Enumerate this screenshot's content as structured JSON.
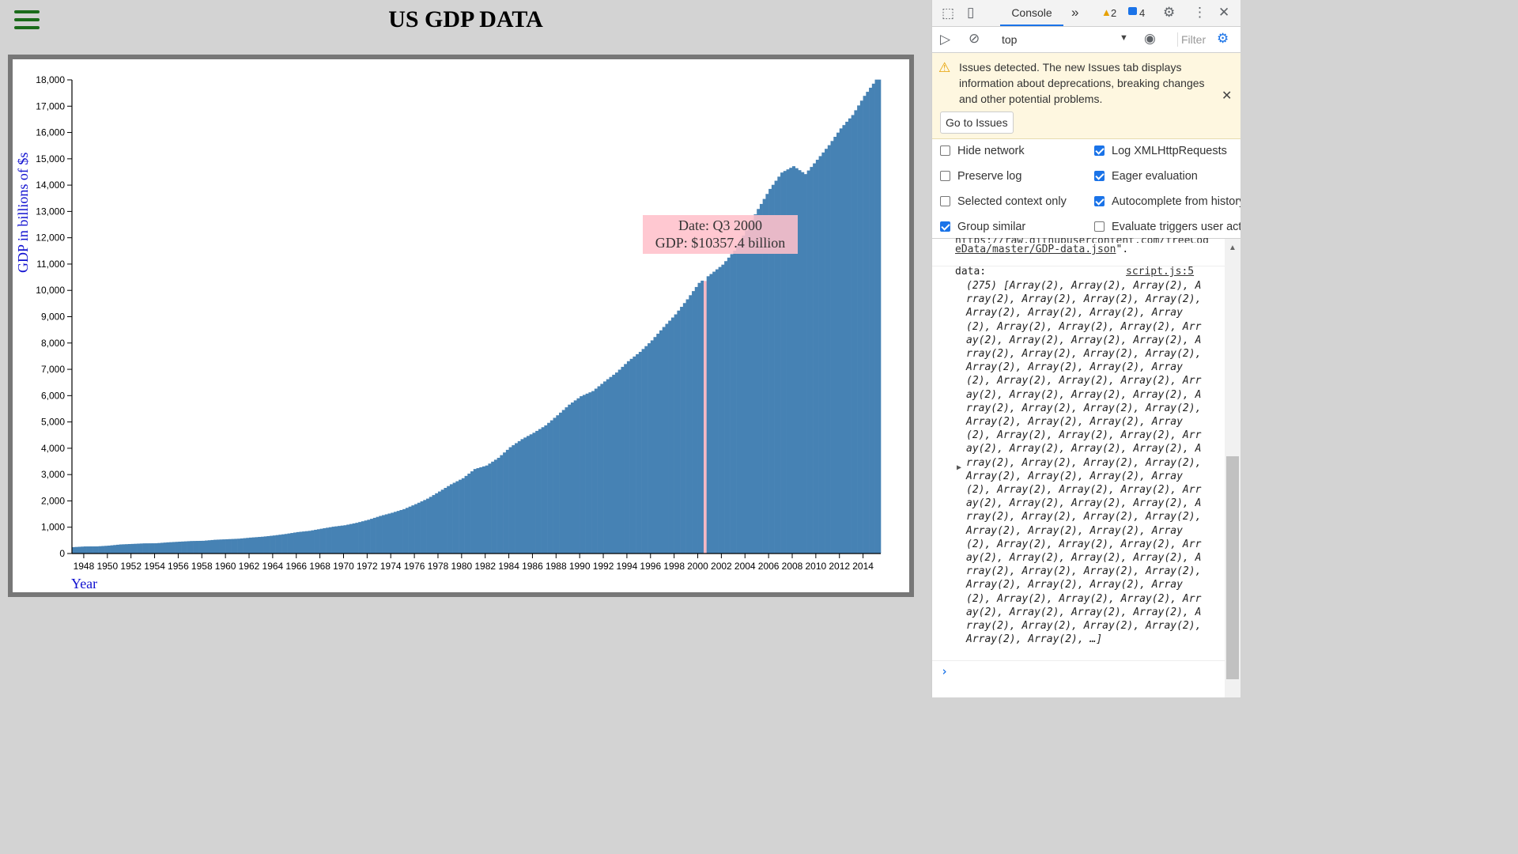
{
  "page": {
    "title": "US GDP DATA",
    "y_axis_title": "GDP in billions of $s",
    "x_axis_title": "Year",
    "tooltip": {
      "date": "Date: Q3 2000",
      "gdp": "GDP: $10357.4 billion"
    },
    "colors": {
      "bar": "#4682b4",
      "highlight_bar": "#f5b8c4",
      "hamburger": "#1a6b1a",
      "axis_titles": "#1010d0"
    }
  },
  "chart_data": {
    "type": "bar",
    "title": "US GDP DATA",
    "xlabel": "Year",
    "ylabel": "GDP in billions of $s",
    "x_range": [
      1947,
      2015.5
    ],
    "ylim": [
      0,
      18000
    ],
    "y_ticks": [
      "0",
      "1,000",
      "2,000",
      "3,000",
      "4,000",
      "5,000",
      "6,000",
      "7,000",
      "8,000",
      "9,000",
      "10,000",
      "11,000",
      "12,000",
      "13,000",
      "14,000",
      "15,000",
      "16,000",
      "17,000",
      "18,000"
    ],
    "x_ticks": [
      "1948",
      "1950",
      "1952",
      "1954",
      "1956",
      "1958",
      "1960",
      "1962",
      "1964",
      "1966",
      "1968",
      "1970",
      "1972",
      "1974",
      "1976",
      "1978",
      "1980",
      "1982",
      "1984",
      "1986",
      "1988",
      "1990",
      "1992",
      "1994",
      "1996",
      "1998",
      "2000",
      "2002",
      "2004",
      "2006",
      "2008",
      "2010",
      "2012",
      "2014"
    ],
    "quarterly": true,
    "start": "1947 Q1",
    "anchor_years": [
      1947,
      1948,
      1949,
      1950,
      1951,
      1952,
      1953,
      1954,
      1955,
      1956,
      1957,
      1958,
      1959,
      1960,
      1961,
      1962,
      1963,
      1964,
      1965,
      1966,
      1967,
      1968,
      1969,
      1970,
      1971,
      1972,
      1973,
      1974,
      1975,
      1976,
      1977,
      1978,
      1979,
      1980,
      1981,
      1982,
      1983,
      1984,
      1985,
      1986,
      1987,
      1988,
      1989,
      1990,
      1991,
      1992,
      1993,
      1994,
      1995,
      1996,
      1997,
      1998,
      1999,
      2000,
      2001,
      2002,
      2003,
      2004,
      2005,
      2006,
      2007,
      2008,
      2009,
      2010,
      2011,
      2012,
      2013,
      2014,
      2015
    ],
    "anchor_values": [
      243,
      269,
      271,
      300,
      345,
      365,
      386,
      390,
      425,
      450,
      475,
      484,
      523,
      543,
      563,
      605,
      638,
      686,
      744,
      815,
      862,
      942,
      1019,
      1075,
      1168,
      1283,
      1429,
      1549,
      1688,
      1878,
      2086,
      2357,
      2632,
      2862,
      3211,
      3345,
      3638,
      4041,
      4347,
      4590,
      4870,
      5253,
      5658,
      5979,
      6174,
      6539,
      6879,
      7309,
      7664,
      8100,
      8609,
      9089,
      9661,
      10285,
      10622,
      10978,
      11511,
      12275,
      13094,
      13856,
      14478,
      14719,
      14419,
      14964,
      15518,
      16155,
      16663,
      17393,
      18010
    ],
    "highlight": {
      "date": "Q3 2000",
      "value": 10357.4
    }
  },
  "devtools": {
    "tabs": {
      "console": "Console",
      "more": "»"
    },
    "warnings_count": "2",
    "messages_count": "4",
    "context": "top",
    "filter_placeholder": "Filter",
    "issues": {
      "message": "Issues detected. The new Issues tab displays information about deprecations, breaking changes and other potential problems.",
      "button": "Go to Issues"
    },
    "options": [
      {
        "label": "Hide network",
        "checked": false
      },
      {
        "label": "Log XMLHttpRequests",
        "checked": true
      },
      {
        "label": "Preserve log",
        "checked": false
      },
      {
        "label": "Eager evaluation",
        "checked": true
      },
      {
        "label": "Selected context only",
        "checked": false
      },
      {
        "label": "Autocomplete from history",
        "checked": true
      },
      {
        "label": "Group similar",
        "checked": true
      },
      {
        "label": "Evaluate triggers user activation",
        "checked": false
      }
    ],
    "console": {
      "url_fragment_top": "https://raw.githubusercontent.com/freeCodeCamp/ProjectReference",
      "url_fragment_bottom": "eData/master/GDP-data.json",
      "url_suffix": "\".",
      "data_label": "data:",
      "source_link": "script.js:5",
      "array_summary": "(275) [Array(2), Array(2), Array(2), Array(2), Array(2), Array(2), Array(2), Array(2), Array(2), Array(2), Array(2), Array(2), Array(2), Array(2), Array(2), Array(2), Array(2), Array(2), Array(2), Array(2), Array(2), Array(2), Array(2), Array(2), Array(2), Array(2), Array(2), Array(2), Array(2), Array(2), Array(2), Array(2), Array(2), Array(2), Array(2), Array(2), Array(2), Array(2), Array(2), Array(2), Array(2), Array(2), Array(2), Array(2), Array(2), Array(2), Array(2), Array(2), Array(2), Array(2), Array(2), Array(2), Array(2), Array(2), Array(2), Array(2), Array(2), Array(2), Array(2), Array(2), Array(2), Array(2), Array(2), Array(2), Array(2), Array(2), Array(2), Array(2), Array(2), Array(2), Array(2), Array(2), Array(2), Array(2), Array(2), Array(2), Array(2), Array(2), Array(2), Array(2), Array(2), Array(2), Array(2), Array(2), Array(2), Array(2), Array(2), Array(2), Array(2), Array(2), Array(2), Array(2), Array(2), Array(2), Array(2), Array(2), Array(2), Array(2), Array(2), …]",
      "prompt": "›"
    }
  }
}
